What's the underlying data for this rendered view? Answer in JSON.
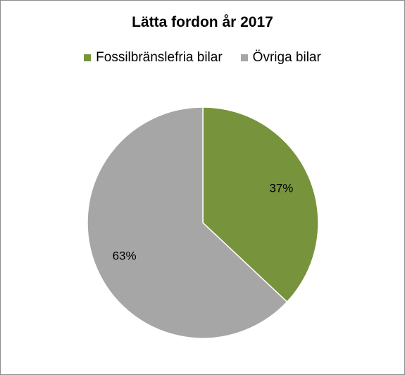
{
  "chart_data": {
    "type": "pie",
    "title": "Lätta fordon år 2017",
    "legend_position": "top",
    "slices": [
      {
        "name": "Fossilbränslefria bilar",
        "value": 37,
        "label": "37%",
        "color": "#77933c"
      },
      {
        "name": "Övriga bilar",
        "value": 63,
        "label": "63%",
        "color": "#a6a6a6"
      }
    ],
    "start_angle_deg": 0,
    "direction": "clockwise"
  }
}
